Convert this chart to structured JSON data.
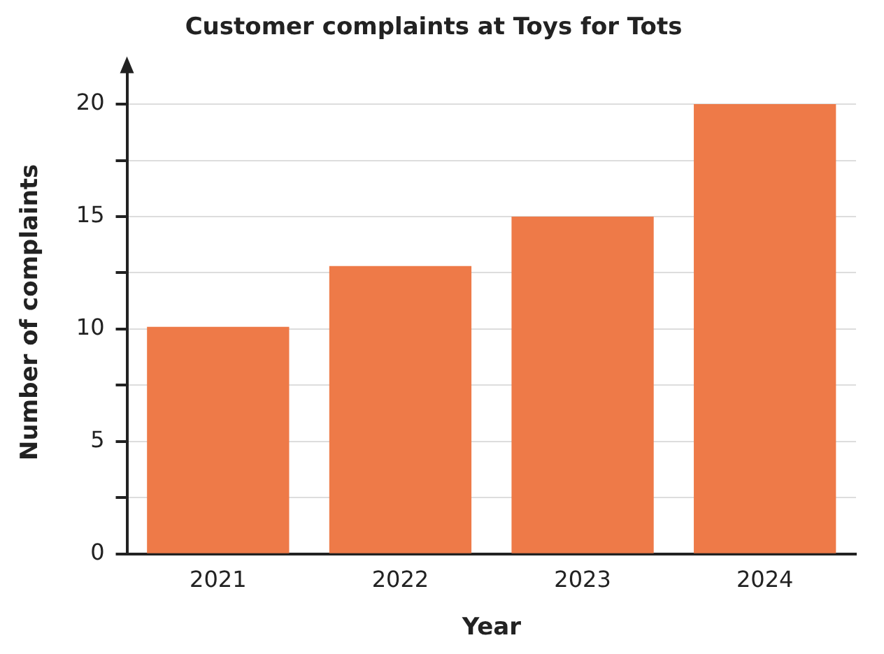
{
  "chart_data": {
    "type": "bar",
    "title": "Customer complaints at Toys for Tots",
    "xlabel": "Year",
    "ylabel": "Number of complaints",
    "categories": [
      "2021",
      "2022",
      "2023",
      "2024"
    ],
    "values": [
      10.1,
      12.8,
      15,
      20
    ],
    "color": "#ee7a48",
    "ylim": [
      0,
      21.5
    ],
    "yticks": [
      0,
      {
        "value": 2.5,
        "label": null
      },
      5,
      {
        "value": 7.5,
        "label": null
      },
      10,
      {
        "value": 12.5,
        "label": null
      },
      15,
      {
        "value": 17.5,
        "label": null
      },
      20
    ],
    "grid": "y",
    "legend": false
  }
}
